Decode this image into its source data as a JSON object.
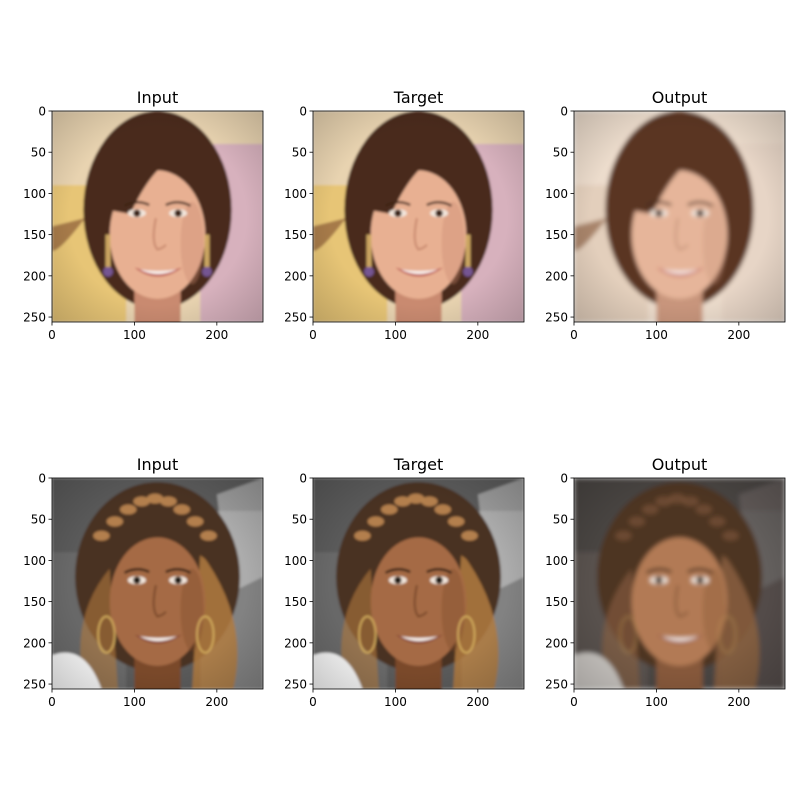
{
  "figure": {
    "rows": [
      {
        "panels": [
          {
            "title": "Input",
            "image": {
              "subject": "woman-brown-hair-smiling",
              "colors": {
                "bg_top": "#e8d3b0",
                "bg_left": "#e6c26c",
                "bg_right": "#d3aac0",
                "hair": "#4a2a1a",
                "hair_light": "#8a5a38",
                "skin": "#e8b092",
                "skin_shadow": "#c98a70",
                "lips": "#c0605a",
                "eyes": "#3a2418"
              }
            }
          },
          {
            "title": "Target",
            "image": {
              "subject": "woman-brown-hair-smiling",
              "colors": {
                "bg_top": "#e8d3b0",
                "bg_left": "#e6c26c",
                "bg_right": "#d3aac0",
                "hair": "#4a2a1a",
                "hair_light": "#8a5a38",
                "skin": "#e8b092",
                "skin_shadow": "#c98a70",
                "lips": "#c0605a",
                "eyes": "#3a2418"
              }
            }
          },
          {
            "title": "Output",
            "image": {
              "subject": "woman-brown-hair-smiling-reconstruction",
              "colors": {
                "bg_top": "#ecdccc",
                "bg_left": "#e2cdb8",
                "bg_right": "#e6d4c4",
                "hair": "#5a3420",
                "hair_light": "#8e6448",
                "skin": "#e6b59a",
                "skin_shadow": "#c8957c",
                "lips": "#c66a60",
                "eyes": "#3e281a"
              }
            }
          }
        ]
      },
      {
        "panels": [
          {
            "title": "Input",
            "image": {
              "subject": "woman-braided-hair-smiling",
              "colors": {
                "bg_top": "#5a5a5a",
                "bg_left": "#6a6a6a",
                "bg_right": "#8a8a8a",
                "hair": "#4a3020",
                "hair_light": "#b07a40",
                "skin": "#a56a44",
                "skin_shadow": "#7a4a2c",
                "lips": "#8a4a3a",
                "eyes": "#1e120c"
              }
            }
          },
          {
            "title": "Target",
            "image": {
              "subject": "woman-braided-hair-smiling",
              "colors": {
                "bg_top": "#5a5a5a",
                "bg_left": "#6a6a6a",
                "bg_right": "#8a8a8a",
                "hair": "#4a3020",
                "hair_light": "#b07a40",
                "skin": "#a56a44",
                "skin_shadow": "#7a4a2c",
                "lips": "#8a4a3a",
                "eyes": "#1e120c"
              }
            }
          },
          {
            "title": "Output",
            "image": {
              "subject": "woman-braided-hair-smiling-reconstruction",
              "colors": {
                "bg_top": "#4a4542",
                "bg_left": "#5a5450",
                "bg_right": "#544e4a",
                "hair": "#4e3424",
                "hair_light": "#8a6040",
                "skin": "#b27a54",
                "skin_shadow": "#86583a",
                "lips": "#9a5a48",
                "eyes": "#24160e"
              }
            }
          }
        ]
      }
    ],
    "axis": {
      "xticks": [
        "0",
        "100",
        "200"
      ],
      "yticks": [
        "0",
        "50",
        "100",
        "150",
        "200",
        "250"
      ],
      "tick_values_x": [
        0,
        100,
        200
      ],
      "tick_values_y": [
        0,
        50,
        100,
        150,
        200,
        250
      ],
      "range": [
        0,
        256
      ]
    },
    "colors": {
      "axis": "#000000",
      "background": "#ffffff"
    }
  }
}
